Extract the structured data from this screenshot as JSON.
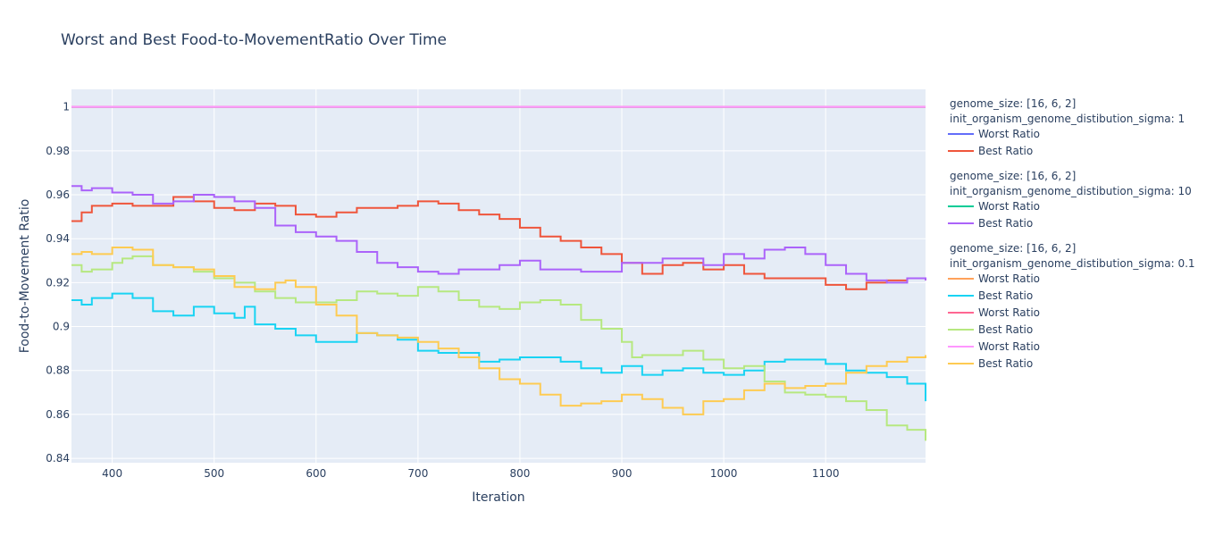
{
  "chart_data": {
    "type": "line",
    "title": "Worst and Best Food-to-MovementRatio Over Time",
    "xlabel": "Iteration",
    "ylabel": "Food-to-Movement Ratio",
    "xlim": [
      360,
      1198
    ],
    "ylim": [
      0.838,
      1.008
    ],
    "x_ticks": [
      400,
      500,
      600,
      700,
      800,
      900,
      1000,
      1100
    ],
    "y_ticks": [
      0.84,
      0.86,
      0.88,
      0.9,
      0.92,
      0.94,
      0.96,
      0.98,
      1
    ],
    "grid": true,
    "legend_position": "right",
    "groups": [
      {
        "title_lines": [
          "genome_size: [16, 6, 2]",
          "init_organism_genome_distibution_sigma: 1"
        ],
        "series": [
          {
            "name": "Worst Ratio",
            "color": "#636efa",
            "x": [
              360,
              1198
            ],
            "y": [
              1.0,
              1.0
            ]
          },
          {
            "name": "Best Ratio",
            "color": "#ef553b",
            "x": [
              360,
              370,
              380,
              400,
              420,
              440,
              460,
              480,
              500,
              520,
              540,
              560,
              580,
              600,
              620,
              640,
              660,
              680,
              700,
              720,
              740,
              760,
              780,
              800,
              820,
              840,
              860,
              880,
              900,
              920,
              940,
              960,
              980,
              1000,
              1020,
              1040,
              1060,
              1080,
              1100,
              1120,
              1140,
              1160,
              1180,
              1198
            ],
            "y": [
              0.948,
              0.952,
              0.955,
              0.956,
              0.955,
              0.955,
              0.959,
              0.957,
              0.954,
              0.953,
              0.956,
              0.955,
              0.951,
              0.95,
              0.952,
              0.954,
              0.954,
              0.955,
              0.957,
              0.956,
              0.953,
              0.951,
              0.949,
              0.945,
              0.941,
              0.939,
              0.936,
              0.933,
              0.929,
              0.924,
              0.928,
              0.929,
              0.926,
              0.928,
              0.924,
              0.922,
              0.922,
              0.922,
              0.919,
              0.917,
              0.92,
              0.921,
              0.922,
              0.921
            ]
          }
        ]
      },
      {
        "title_lines": [
          "genome_size: [16, 6, 2]",
          "init_organism_genome_distibution_sigma: 10"
        ],
        "series": [
          {
            "name": "Worst Ratio",
            "color": "#00cc96",
            "x": [
              360,
              1198
            ],
            "y": [
              1.0,
              1.0
            ]
          },
          {
            "name": "Best Ratio",
            "color": "#ab63fa",
            "x": [
              360,
              370,
              380,
              400,
              420,
              440,
              460,
              480,
              500,
              520,
              540,
              560,
              580,
              600,
              620,
              640,
              660,
              680,
              700,
              720,
              740,
              760,
              780,
              800,
              820,
              840,
              860,
              880,
              900,
              920,
              940,
              960,
              980,
              1000,
              1020,
              1040,
              1060,
              1080,
              1100,
              1120,
              1140,
              1160,
              1180,
              1198
            ],
            "y": [
              0.964,
              0.962,
              0.963,
              0.961,
              0.96,
              0.956,
              0.957,
              0.96,
              0.959,
              0.957,
              0.954,
              0.946,
              0.943,
              0.941,
              0.939,
              0.934,
              0.929,
              0.927,
              0.925,
              0.924,
              0.926,
              0.926,
              0.928,
              0.93,
              0.926,
              0.926,
              0.925,
              0.925,
              0.929,
              0.929,
              0.931,
              0.931,
              0.928,
              0.933,
              0.931,
              0.935,
              0.936,
              0.933,
              0.928,
              0.924,
              0.921,
              0.92,
              0.922,
              0.921
            ]
          }
        ]
      },
      {
        "title_lines": [
          "genome_size: [16, 6, 2]",
          "init_organism_genome_distibution_sigma: 0.1"
        ],
        "series": [
          {
            "name": "Worst Ratio",
            "color": "#ffa15a",
            "x": [
              360,
              1198
            ],
            "y": [
              1.0,
              1.0
            ]
          },
          {
            "name": "Best Ratio",
            "color": "#19d3f3",
            "x": [
              360,
              370,
              380,
              400,
              420,
              440,
              460,
              480,
              500,
              520,
              530,
              540,
              560,
              580,
              600,
              620,
              640,
              660,
              680,
              700,
              720,
              740,
              760,
              780,
              800,
              820,
              840,
              860,
              880,
              900,
              920,
              940,
              960,
              980,
              1000,
              1020,
              1040,
              1060,
              1080,
              1100,
              1120,
              1140,
              1160,
              1180,
              1198
            ],
            "y": [
              0.912,
              0.91,
              0.913,
              0.915,
              0.913,
              0.907,
              0.905,
              0.909,
              0.906,
              0.904,
              0.909,
              0.901,
              0.899,
              0.896,
              0.893,
              0.893,
              0.897,
              0.896,
              0.894,
              0.889,
              0.888,
              0.888,
              0.884,
              0.885,
              0.886,
              0.886,
              0.884,
              0.881,
              0.879,
              0.882,
              0.878,
              0.88,
              0.881,
              0.879,
              0.878,
              0.88,
              0.884,
              0.885,
              0.885,
              0.883,
              0.88,
              0.879,
              0.877,
              0.874,
              0.866
            ]
          },
          {
            "name": "Worst Ratio",
            "color": "#ff6692",
            "x": [
              360,
              1198
            ],
            "y": [
              1.0,
              1.0
            ]
          },
          {
            "name": "Best Ratio",
            "color": "#b6e880",
            "x": [
              360,
              370,
              380,
              400,
              410,
              420,
              440,
              460,
              480,
              500,
              520,
              540,
              560,
              580,
              600,
              620,
              640,
              660,
              680,
              700,
              720,
              740,
              760,
              780,
              800,
              820,
              840,
              860,
              880,
              900,
              910,
              920,
              940,
              960,
              980,
              1000,
              1020,
              1040,
              1060,
              1080,
              1100,
              1120,
              1140,
              1160,
              1180,
              1198
            ],
            "y": [
              0.928,
              0.925,
              0.926,
              0.929,
              0.931,
              0.932,
              0.928,
              0.927,
              0.925,
              0.922,
              0.92,
              0.916,
              0.913,
              0.911,
              0.911,
              0.912,
              0.916,
              0.915,
              0.914,
              0.918,
              0.916,
              0.912,
              0.909,
              0.908,
              0.911,
              0.912,
              0.91,
              0.903,
              0.899,
              0.893,
              0.886,
              0.887,
              0.887,
              0.889,
              0.885,
              0.881,
              0.882,
              0.875,
              0.87,
              0.869,
              0.868,
              0.866,
              0.862,
              0.855,
              0.853,
              0.848
            ]
          },
          {
            "name": "Worst Ratio",
            "color": "#ff97ff",
            "x": [
              360,
              1198
            ],
            "y": [
              1.0,
              1.0
            ]
          },
          {
            "name": "Best Ratio",
            "color": "#fecb52",
            "x": [
              360,
              370,
              380,
              400,
              420,
              440,
              460,
              480,
              500,
              520,
              540,
              560,
              570,
              580,
              600,
              620,
              640,
              660,
              680,
              700,
              720,
              740,
              760,
              780,
              800,
              820,
              840,
              860,
              880,
              900,
              920,
              940,
              960,
              980,
              1000,
              1020,
              1040,
              1060,
              1080,
              1100,
              1120,
              1140,
              1160,
              1180,
              1198
            ],
            "y": [
              0.933,
              0.934,
              0.933,
              0.936,
              0.935,
              0.928,
              0.927,
              0.926,
              0.923,
              0.918,
              0.917,
              0.92,
              0.921,
              0.918,
              0.91,
              0.905,
              0.897,
              0.896,
              0.895,
              0.893,
              0.89,
              0.886,
              0.881,
              0.876,
              0.874,
              0.869,
              0.864,
              0.865,
              0.866,
              0.869,
              0.867,
              0.863,
              0.86,
              0.866,
              0.867,
              0.871,
              0.874,
              0.872,
              0.873,
              0.874,
              0.879,
              0.882,
              0.884,
              0.886,
              0.887
            ]
          }
        ]
      }
    ]
  }
}
